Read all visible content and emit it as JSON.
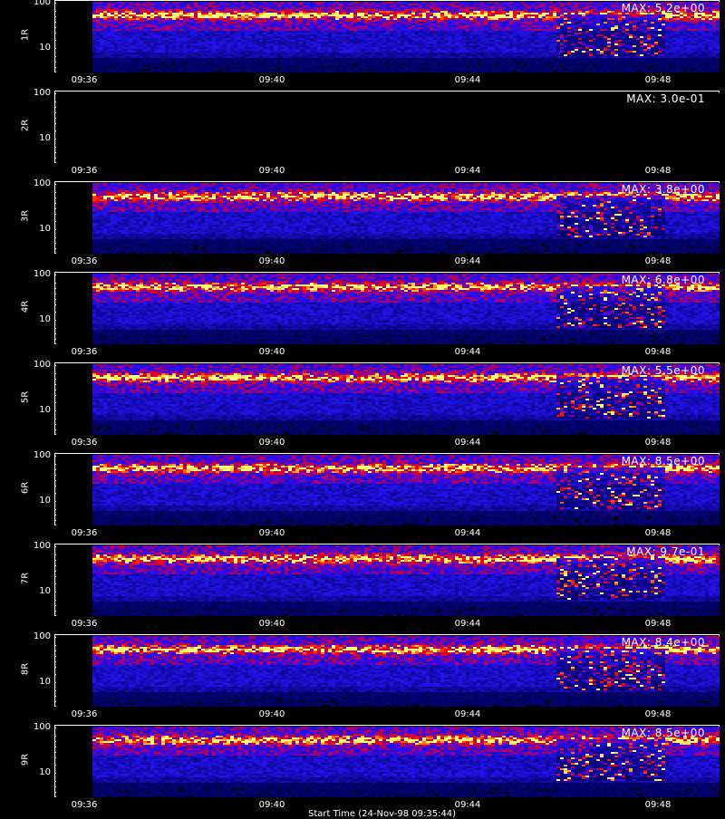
{
  "chart_data": {
    "type": "heatmap",
    "y_scale": "log",
    "ylim": [
      3,
      110
    ],
    "y_ticks": [
      "100",
      "10"
    ],
    "x_ticks": [
      "09:36",
      "09:40",
      "09:44",
      "09:48"
    ],
    "bottom_caption": "Start Time (24-Nov-98 09:35:44)",
    "colors": {
      "low": "#0000ff",
      "mid": "#ff0000",
      "high": "#ffff00",
      "background": "#000000"
    },
    "panels": [
      {
        "label": "1R",
        "max": "MAX: 5.2e+00"
      },
      {
        "label": "2R",
        "max": "MAX: 3.0e-01"
      },
      {
        "label": "3R",
        "max": "MAX: 3.8e+00"
      },
      {
        "label": "4R",
        "max": "MAX: 6.8e+00"
      },
      {
        "label": "5R",
        "max": "MAX: 5.5e+00"
      },
      {
        "label": "6R",
        "max": "MAX: 8.5e+00"
      },
      {
        "label": "7R",
        "max": "MAX: 9.7e-01"
      },
      {
        "label": "8R",
        "max": "MAX: 8.4e+00"
      },
      {
        "label": "9R",
        "max": "MAX: 8.5e+00"
      }
    ]
  }
}
